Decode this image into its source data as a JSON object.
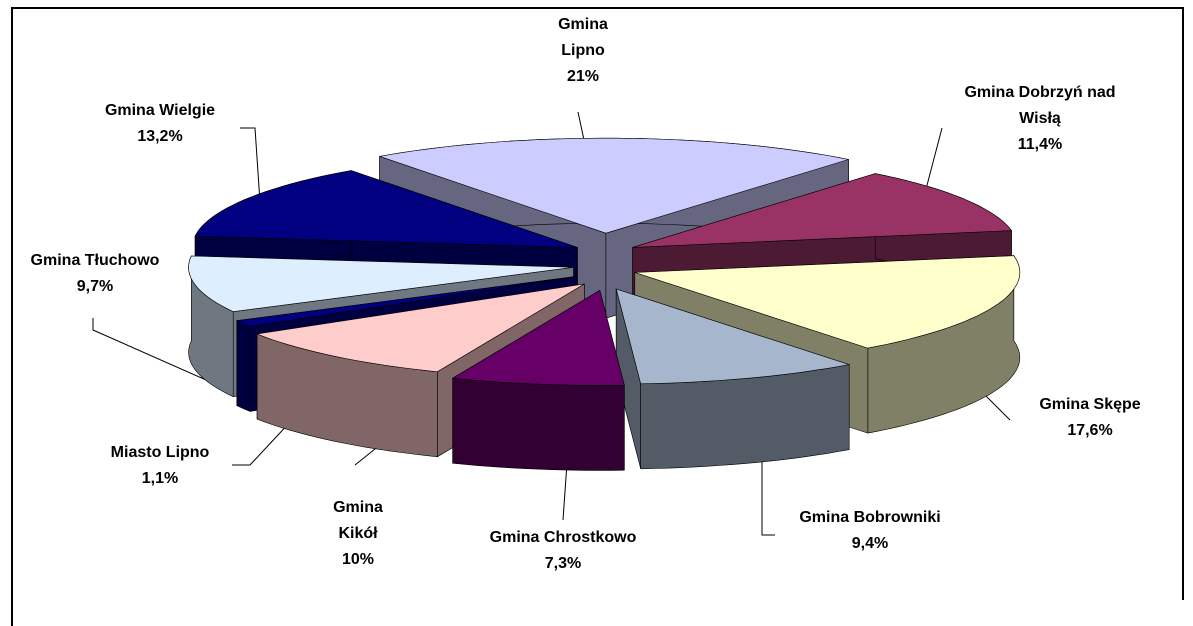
{
  "chart_data": {
    "type": "pie3d",
    "categories": [
      "Gmina Lipno",
      "Gmina Dobrzyń nad Wisłą",
      "Gmina Skępe",
      "Gmina Bobrowniki",
      "Gmina Chrostkowo",
      "Gmina Kikół",
      "Miasto Lipno",
      "Gmina Tłuchowo",
      "Gmina Wielgie"
    ],
    "values": [
      21,
      11.4,
      17.6,
      9.4,
      7.3,
      10,
      1.1,
      9.7,
      13.2
    ],
    "value_labels": [
      "21%",
      "11,4%",
      "17,6%",
      "9,4%",
      "7,3%",
      "10%",
      "1,1%",
      "9,7%",
      "13,2%"
    ],
    "colors": [
      "#ccccff",
      "#993366",
      "#ffffcc",
      "#a6b6cc",
      "#660066",
      "#ffcccc",
      "#000080",
      "#ddeeff",
      "#000080"
    ]
  }
}
